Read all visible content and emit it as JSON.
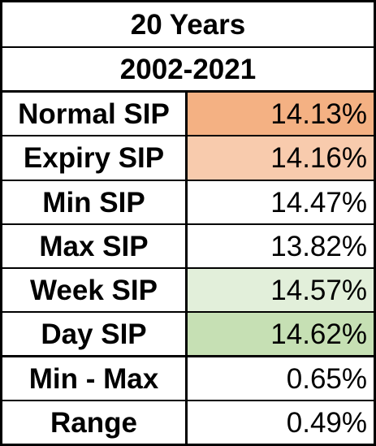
{
  "table": {
    "title": "20 Years",
    "period": "2002-2021",
    "rows": [
      {
        "label": "Normal SIP",
        "value": "14.13%",
        "fill": "#f4b183"
      },
      {
        "label": "Expiry SIP",
        "value": "14.16%",
        "fill": "#f8cbad"
      },
      {
        "label": "Min SIP",
        "value": "14.47%",
        "fill": "#ffffff"
      },
      {
        "label": "Max SIP",
        "value": "13.82%",
        "fill": "#ffffff"
      },
      {
        "label": "Week SIP",
        "value": "14.57%",
        "fill": "#e2efda"
      },
      {
        "label": "Day SIP",
        "value": "14.62%",
        "fill": "#c6e0b4"
      },
      {
        "label": "Min - Max",
        "value": "0.65%",
        "fill": "#ffffff"
      },
      {
        "label": "Range",
        "value": "0.49%",
        "fill": "#ffffff"
      }
    ]
  }
}
